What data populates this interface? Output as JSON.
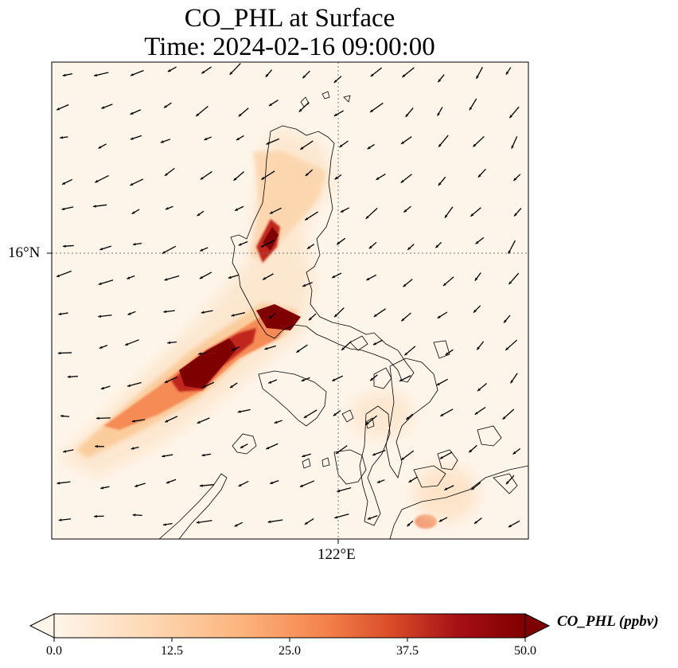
{
  "title": {
    "line1": "CO_PHL at Surface",
    "line2": "Time: 2024-02-16 09:00:00"
  },
  "map": {
    "lat_label": "16°N",
    "lon_label": "122°E",
    "colors": {
      "background": "#fef5ea",
      "coast": "#000000",
      "gridline": "#777777"
    }
  },
  "colorbar": {
    "label": "CO_PHL (ppbv)",
    "ticks": [
      "0.0",
      "12.5",
      "25.0",
      "37.5",
      "50.0"
    ],
    "colormap": [
      "#fff5eb",
      "#fdd9b4",
      "#fdb37c",
      "#f4804a",
      "#d84a28",
      "#a50f15",
      "#7f0000"
    ],
    "range": [
      0,
      50
    ],
    "extend": "both"
  }
}
